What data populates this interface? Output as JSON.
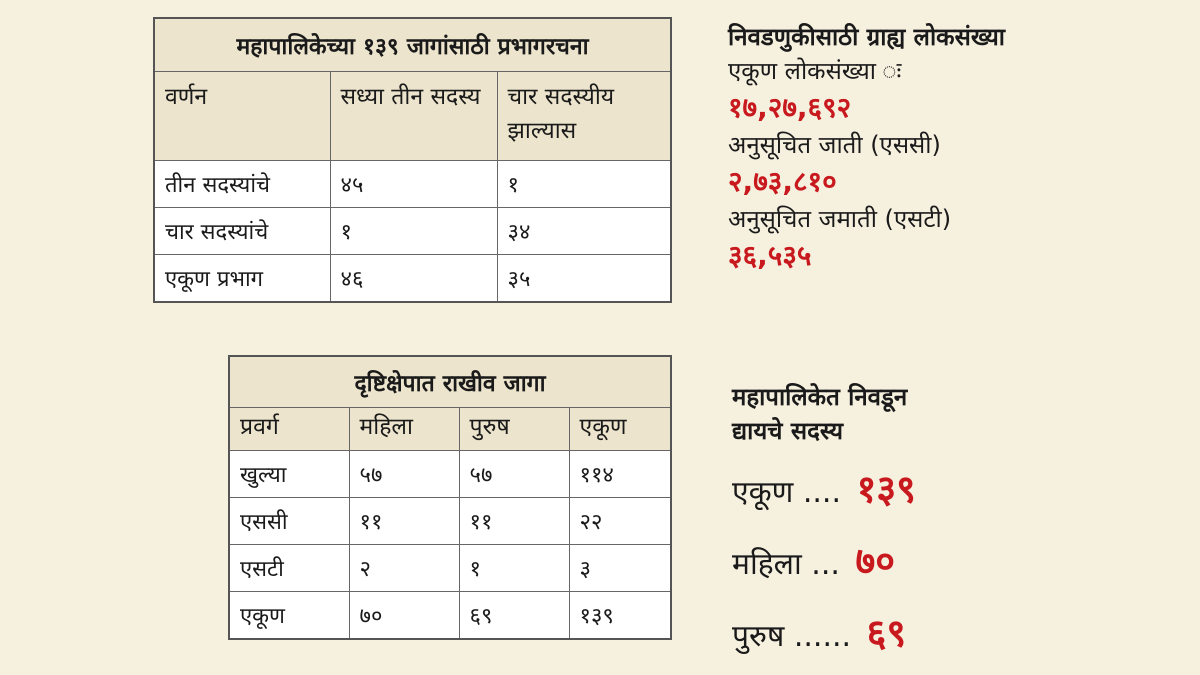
{
  "ward_table": {
    "title": "महापालिकेच्या १३९ जागांसाठी प्रभागरचना",
    "headers": [
      "वर्णन",
      "सध्या तीन सदस्य",
      "चार सदस्यीय झाल्यास"
    ],
    "rows": [
      [
        "तीन सदस्यांचे",
        "४५",
        "१"
      ],
      [
        "चार सदस्यांचे",
        "१",
        "३४"
      ],
      [
        "एकूण प्रभाग",
        "४६",
        "३५"
      ]
    ]
  },
  "reserved_table": {
    "title": "दृष्टिक्षेपात राखीव जागा",
    "headers": [
      "प्रवर्ग",
      "महिला",
      "पुरुष",
      "एकूण"
    ],
    "rows": [
      [
        "खुल्या",
        "५७",
        "५७",
        "११४"
      ],
      [
        "एससी",
        "११",
        "११",
        "२२"
      ],
      [
        "एसटी",
        "२",
        "१",
        "३"
      ],
      [
        "एकूण",
        "७०",
        "६९",
        "१३९"
      ]
    ]
  },
  "population": {
    "heading": "निवडणुकीसाठी ग्राह्य लोकसंख्या",
    "total_label": "एकूण लोकसंख्या ः",
    "total_value": "१७,२७,६९२",
    "sc_label": "अनुसूचित जाती (एससी)",
    "sc_value": "२,७३,८१०",
    "st_label": "अनुसूचित जमाती (एसटी)",
    "st_value": "३६,५३५"
  },
  "members": {
    "heading_line1": "महापालिकेत निवडून",
    "heading_line2": "द्यायचे सदस्य",
    "total_label": "एकूण ....",
    "total_value": "१३९",
    "women_label": "महिला ...",
    "women_value": "७०",
    "men_label": "पुरुष ......",
    "men_value": "६९"
  },
  "colors": {
    "background": "#f6f0df",
    "header_fill": "#ece4cc",
    "highlight_red": "#c8191e"
  }
}
